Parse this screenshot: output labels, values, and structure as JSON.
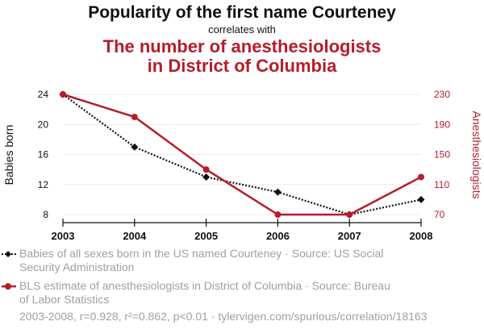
{
  "titles": {
    "main": "Popularity of the first name Courteney",
    "connector": "correlates with",
    "second_line1": "The number of anesthesiologists",
    "second_line2": "in District of Columbia"
  },
  "legend": [
    {
      "text": "Babies of all sexes born in the US named Courteney · Source: US Social Security Administration",
      "line1": "Babies of all sexes born in the US named Courteney · Source: US Social",
      "line2": "Security Administration",
      "color": "#111111",
      "marker": "diamond",
      "dash": "dotted"
    },
    {
      "text": "BLS estimate of anesthesiologists in District of Columbia · Source: Bureau of Labor Statistics",
      "line1": "BLS estimate of anesthesiologists in District of Columbia · Source: Bureau",
      "line2": "of Labor Statistics",
      "color": "#b51d2a",
      "marker": "circle",
      "dash": "solid"
    }
  ],
  "footer": "2003-2008, r=0.928, r²=0.862, p<0.01 · tylervigen.com/spurious/correlation/18163",
  "chart_data": {
    "type": "line",
    "x": [
      2003,
      2004,
      2005,
      2006,
      2007,
      2008
    ],
    "xticks": [
      "2003",
      "2004",
      "2005",
      "2006",
      "2007",
      "2008"
    ],
    "series": [
      {
        "name": "Babies of all sexes born in the US named Courteney",
        "axis": "left",
        "color": "#111111",
        "style": "dotted",
        "marker": "diamond",
        "values": [
          24,
          17,
          13,
          11,
          8,
          10
        ]
      },
      {
        "name": "BLS estimate of anesthesiologists in District of Columbia",
        "axis": "right",
        "color": "#b51d2a",
        "style": "solid",
        "marker": "circle",
        "values": [
          230,
          200,
          130,
          70,
          70,
          120
        ]
      }
    ],
    "left_axis": {
      "label": "Babies born",
      "ticks": [
        8,
        12,
        16,
        20,
        24
      ],
      "ylim": [
        8,
        24
      ]
    },
    "right_axis": {
      "label": "Anesthesiologists",
      "ticks": [
        70,
        110,
        150,
        190,
        230
      ],
      "ylim": [
        70,
        230
      ]
    },
    "grid": true,
    "legend_placement": "bottom"
  }
}
